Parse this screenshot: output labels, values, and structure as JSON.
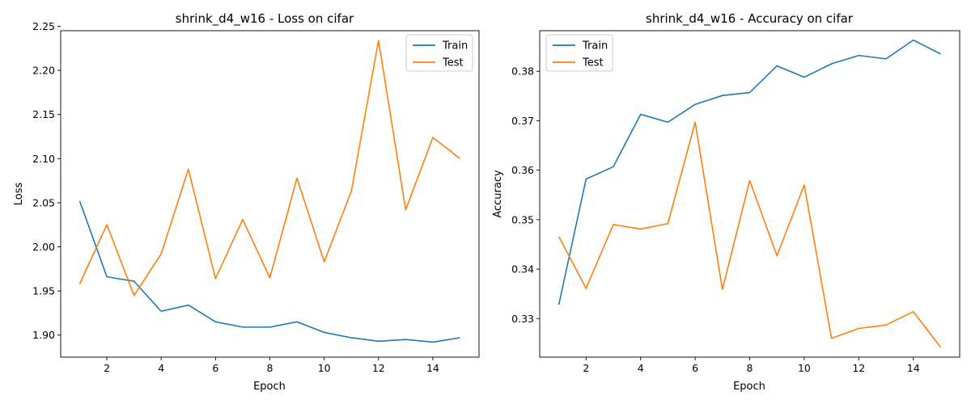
{
  "colors": {
    "train": "#1f77b4",
    "test": "#ff7f0e"
  },
  "chart_data": [
    {
      "type": "line",
      "title": "shrink_d4_w16 - Loss on cifar",
      "xlabel": "Epoch",
      "ylabel": "Loss",
      "x": [
        1,
        2,
        3,
        4,
        5,
        6,
        7,
        8,
        9,
        10,
        11,
        12,
        13,
        14,
        15
      ],
      "xlim": [
        0.3,
        15.7
      ],
      "ylim": [
        1.875,
        2.245
      ],
      "xticks": [
        2,
        4,
        6,
        8,
        10,
        12,
        14
      ],
      "yticks": [
        "1.90",
        "1.95",
        "2.00",
        "2.05",
        "2.10",
        "2.15",
        "2.20",
        "2.25"
      ],
      "legend_position": "upper right",
      "series": [
        {
          "name": "Train",
          "values": [
            2.052,
            1.966,
            1.961,
            1.927,
            1.934,
            1.915,
            1.909,
            1.909,
            1.915,
            1.903,
            1.897,
            1.893,
            1.895,
            1.892,
            1.897
          ]
        },
        {
          "name": "Test",
          "values": [
            1.958,
            2.025,
            1.945,
            1.992,
            2.088,
            1.964,
            2.031,
            1.965,
            2.078,
            1.983,
            2.063,
            2.234,
            2.042,
            2.124,
            2.1
          ]
        }
      ]
    },
    {
      "type": "line",
      "title": "shrink_d4_w16 - Accuracy on cifar",
      "xlabel": "Epoch",
      "ylabel": "Accuracy",
      "x": [
        1,
        2,
        3,
        4,
        5,
        6,
        7,
        8,
        9,
        10,
        11,
        12,
        13,
        14,
        15
      ],
      "xlim": [
        0.3,
        15.7
      ],
      "ylim": [
        0.3222,
        0.3882
      ],
      "xticks": [
        2,
        4,
        6,
        8,
        10,
        12,
        14
      ],
      "yticks": [
        "0.33",
        "0.34",
        "0.35",
        "0.36",
        "0.37",
        "0.38"
      ],
      "legend_position": "upper left",
      "series": [
        {
          "name": "Train",
          "values": [
            0.3328,
            0.3582,
            0.3607,
            0.3713,
            0.3697,
            0.3733,
            0.3751,
            0.3757,
            0.3811,
            0.3788,
            0.3815,
            0.3832,
            0.3825,
            0.3863,
            0.3835
          ]
        },
        {
          "name": "Test",
          "values": [
            0.3466,
            0.3361,
            0.349,
            0.3481,
            0.3492,
            0.3697,
            0.3359,
            0.3579,
            0.3427,
            0.357,
            0.326,
            0.328,
            0.3287,
            0.3314,
            0.3242
          ]
        }
      ]
    }
  ]
}
